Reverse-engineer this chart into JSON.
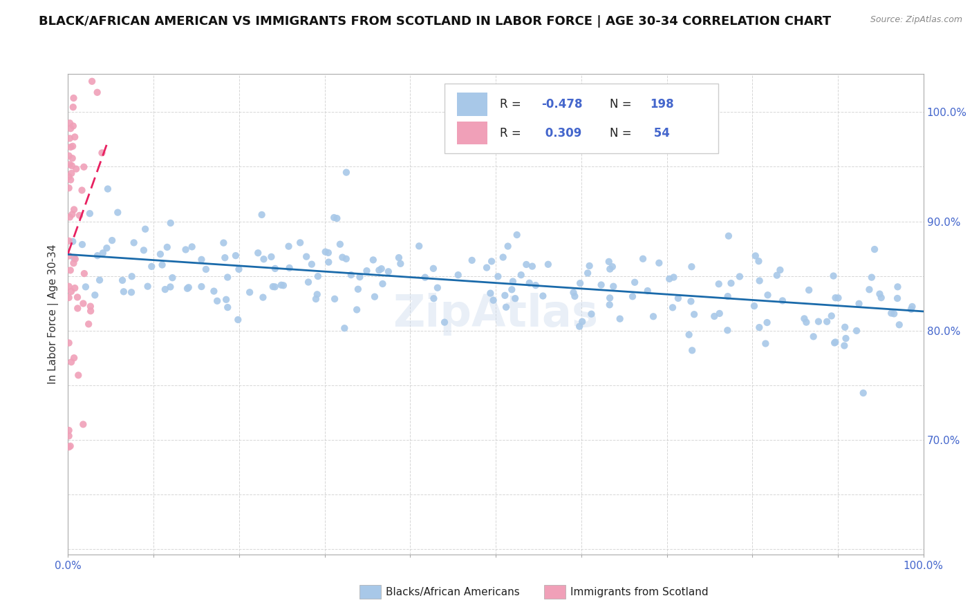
{
  "title": "BLACK/AFRICAN AMERICAN VS IMMIGRANTS FROM SCOTLAND IN LABOR FORCE | AGE 30-34 CORRELATION CHART",
  "source": "Source: ZipAtlas.com",
  "ylabel": "In Labor Force | Age 30-34",
  "xlim": [
    0.0,
    1.0
  ],
  "ylim": [
    0.595,
    1.035
  ],
  "blue_R": -0.478,
  "blue_N": 198,
  "pink_R": 0.309,
  "pink_N": 54,
  "blue_color": "#a8c8e8",
  "pink_color": "#f0a0b8",
  "blue_line_color": "#1a6aaa",
  "pink_line_color": "#e82060",
  "legend_label_blue": "Blacks/African Americans",
  "legend_label_pink": "Immigrants from Scotland",
  "watermark": "ZipAtlas",
  "background_color": "#ffffff",
  "grid_color": "#cccccc",
  "title_fontsize": 13,
  "axis_label_fontsize": 11,
  "tick_fontsize": 11,
  "tick_color": "#4466cc",
  "y_tick_vals": [
    0.6,
    0.65,
    0.7,
    0.75,
    0.8,
    0.85,
    0.9,
    0.95,
    1.0
  ],
  "y_tick_labels": [
    "",
    "",
    "70.0%",
    "",
    "80.0%",
    "",
    "90.0%",
    "",
    "100.0%"
  ]
}
